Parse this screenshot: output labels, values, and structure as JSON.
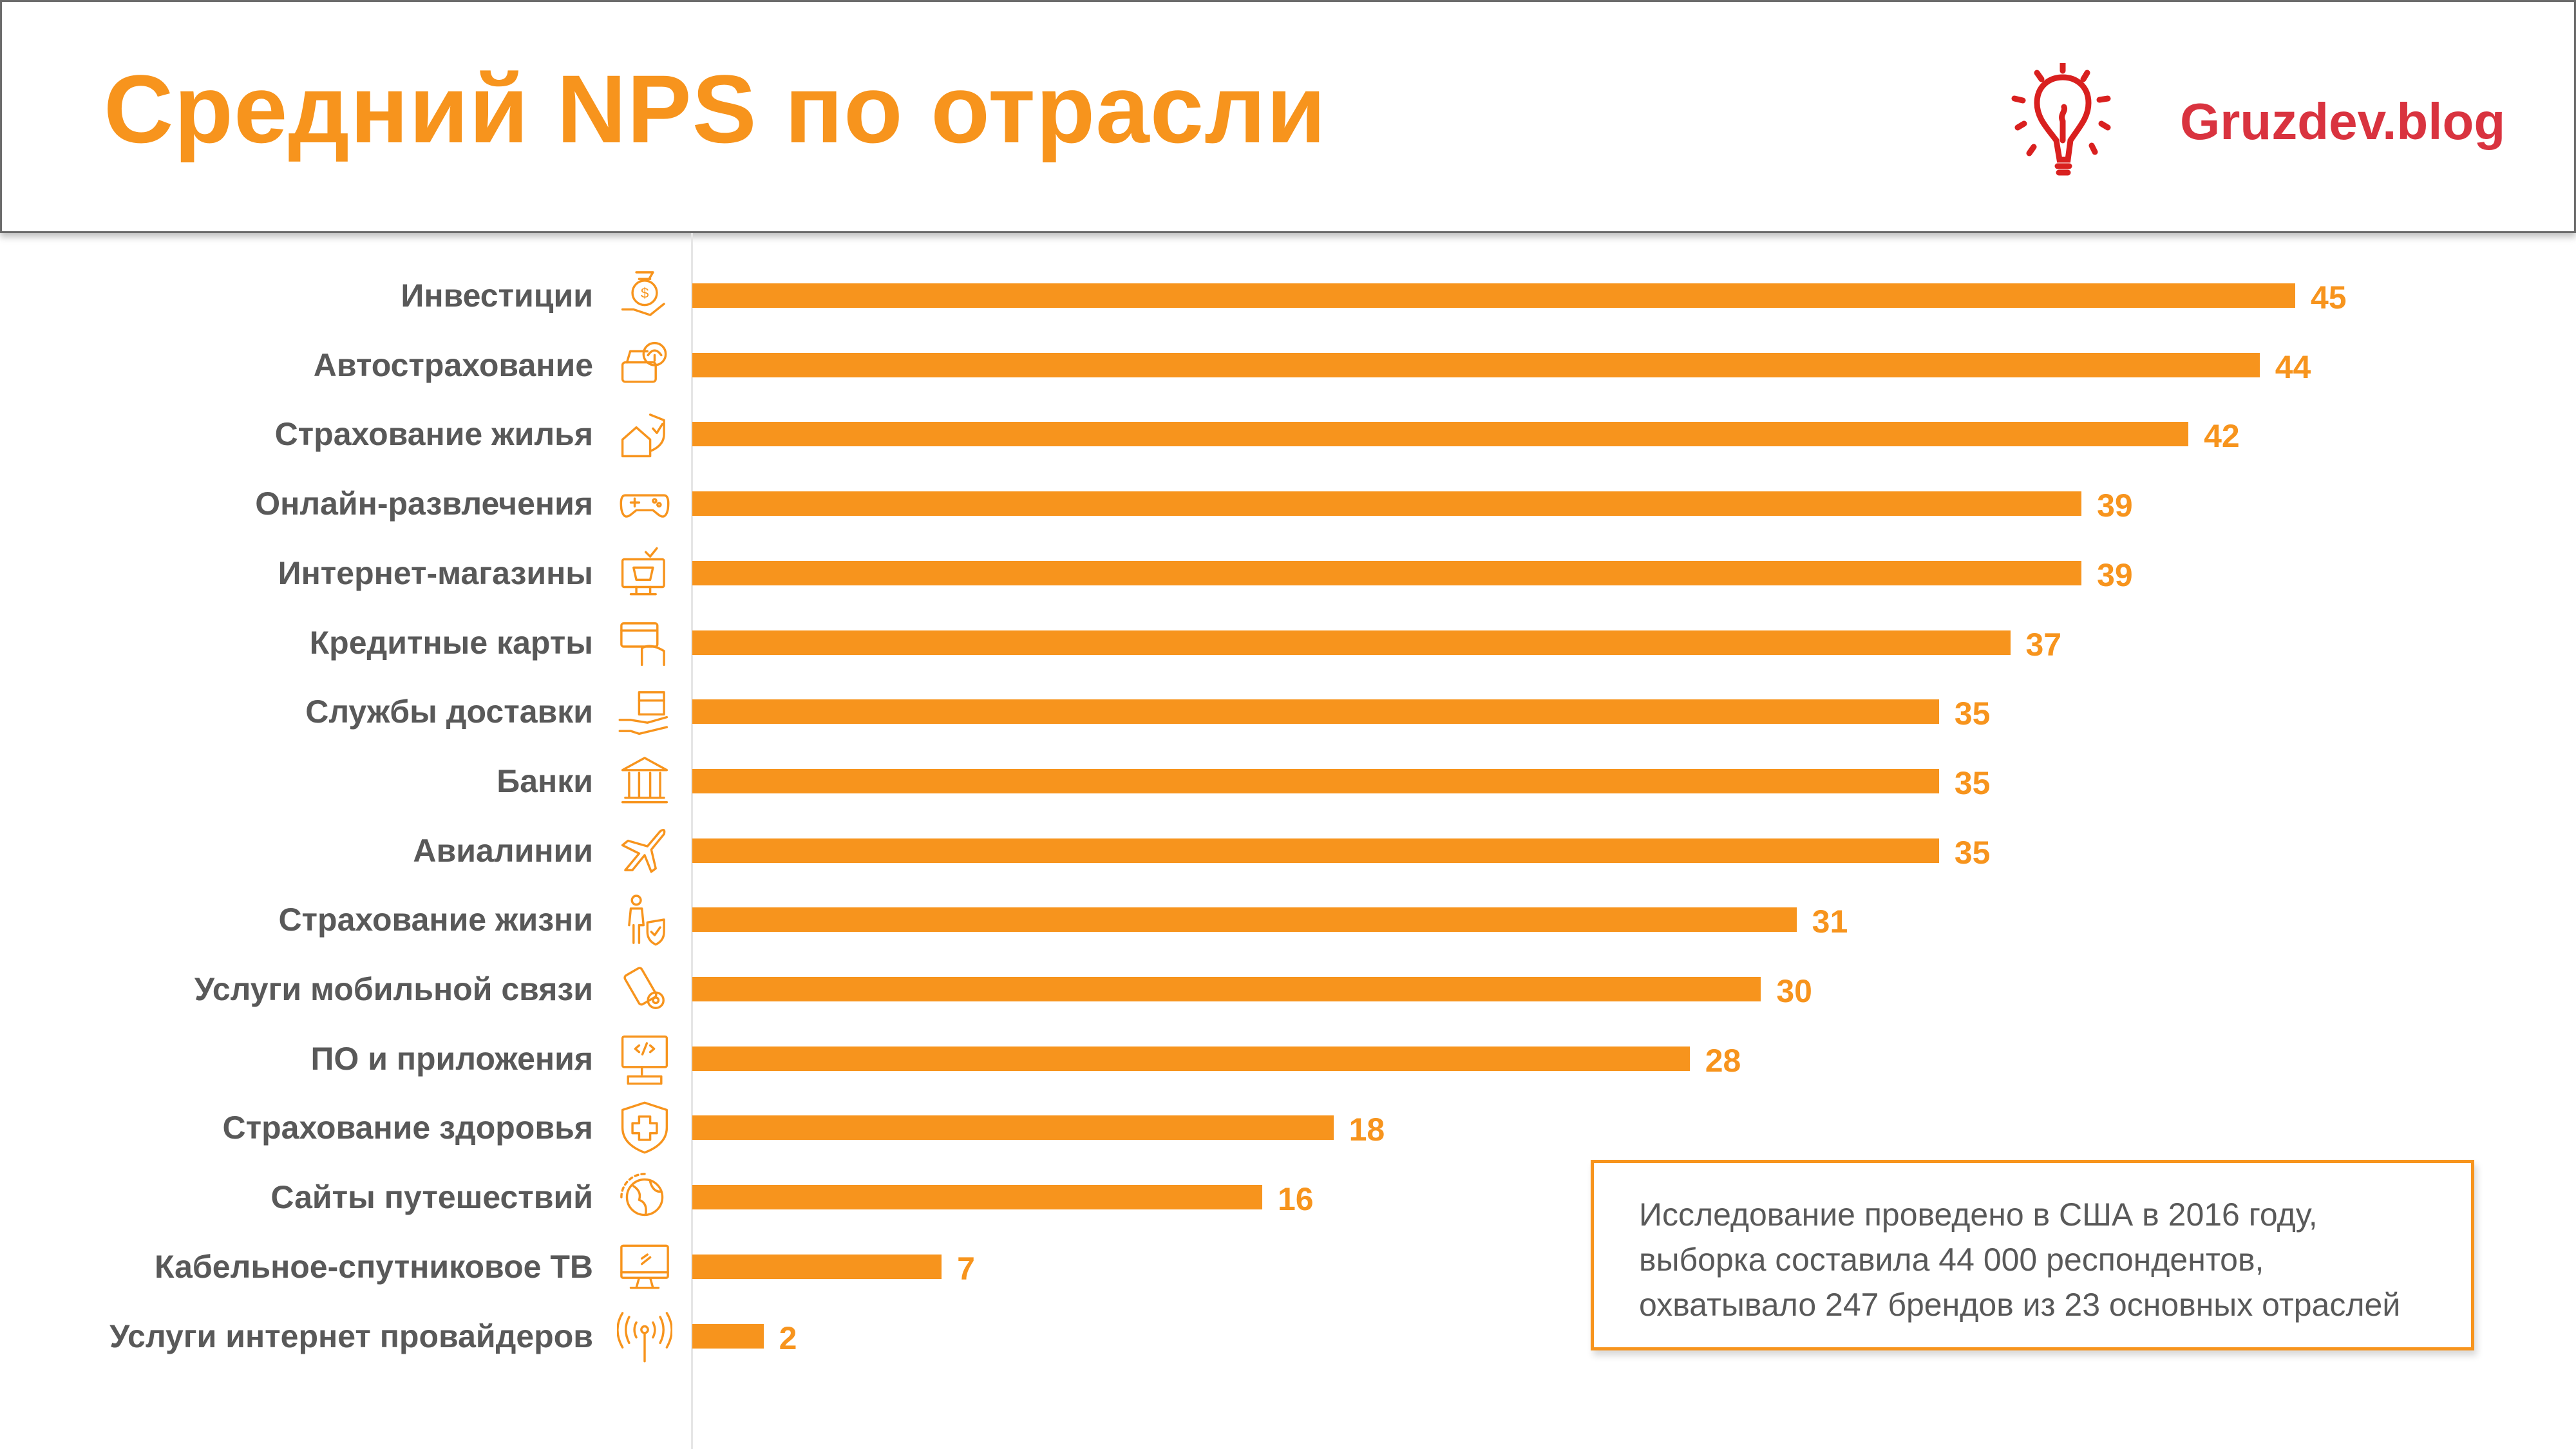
{
  "header": {
    "title": "Средний NPS по отрасли",
    "logo_text": "Gruzdev.blog"
  },
  "note": {
    "lines": [
      "Исследование проведено в США в 2016 году,",
      "выборка составила 44 000 респондентов,",
      "охватывало 247 брендов из 23 основных отраслей"
    ]
  },
  "colors": {
    "bar": "#f7941d",
    "title": "#f7941d",
    "label": "#595959",
    "logo": "#d9333f"
  },
  "chart_data": {
    "type": "bar",
    "orientation": "horizontal",
    "title": "Средний NPS по отрасли",
    "xlabel": "",
    "ylabel": "",
    "xlim": [
      0,
      45
    ],
    "grid": false,
    "data_labels": true,
    "categories": [
      "Инвестиции",
      "Автострахование",
      "Страхование жилья",
      "Онлайн-развлечения",
      "Интернет-магазины",
      "Кредитные карты",
      "Службы доставки",
      "Банки",
      "Авиалинии",
      "Страхование жизни",
      "Услуги мобильной связи",
      "ПО и приложения",
      "Страхование здоровья",
      "Сайты путешествий",
      "Кабельное-спутниковое ТВ",
      "Услуги интернет провайдеров"
    ],
    "icons": [
      "money-bag-hand-icon",
      "car-umbrella-icon",
      "house-shield-icon",
      "gamepad-icon",
      "online-shop-icon",
      "credit-card-hand-icon",
      "delivery-box-hand-icon",
      "bank-icon",
      "airplane-icon",
      "person-shield-icon",
      "phone-gear-icon",
      "computer-code-icon",
      "shield-cross-icon",
      "globe-icon",
      "tv-icon",
      "antenna-signal-icon"
    ],
    "values": [
      45,
      44,
      42,
      39,
      39,
      37,
      35,
      35,
      35,
      31,
      30,
      28,
      18,
      16,
      7,
      2
    ]
  }
}
